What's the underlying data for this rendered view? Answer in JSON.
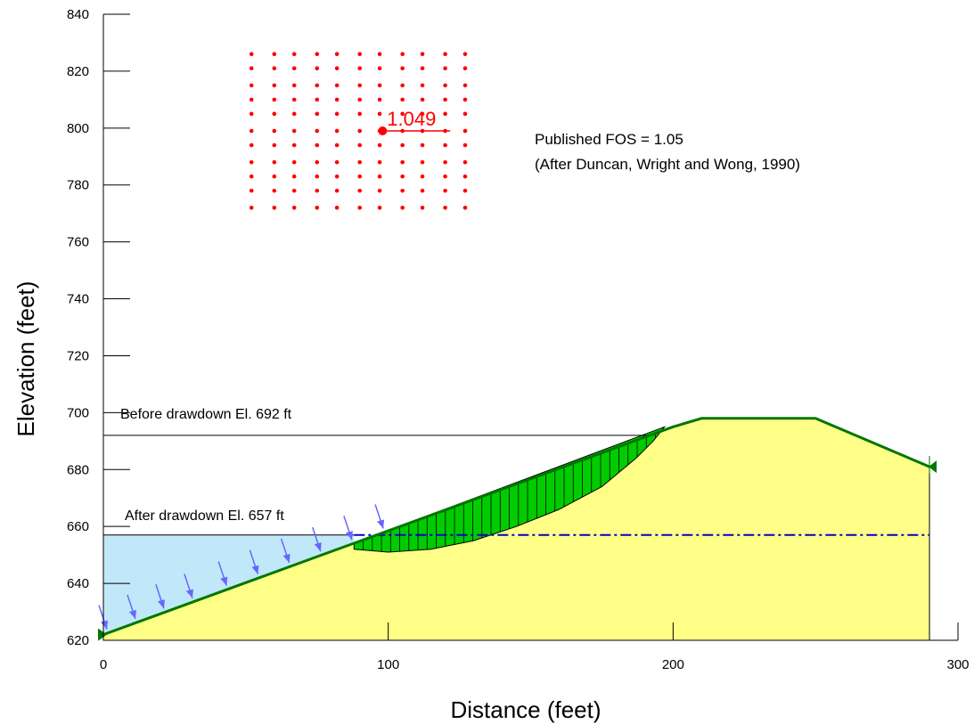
{
  "chart_data": {
    "type": "slope-stability-cross-section",
    "xlabel": "Distance (feet)",
    "ylabel": "Elevation (feet)",
    "xlim": [
      0,
      300
    ],
    "ylim": [
      620,
      840
    ],
    "x_ticks": [
      0,
      100,
      200,
      300
    ],
    "y_ticks": [
      620,
      640,
      660,
      680,
      700,
      720,
      740,
      760,
      780,
      800,
      820,
      840
    ],
    "ground_surface": [
      [
        0,
        622
      ],
      [
        200,
        695
      ],
      [
        210,
        698
      ],
      [
        250,
        698
      ],
      [
        290,
        681
      ]
    ],
    "water_levels": [
      {
        "label": "Before drawdown El. 692 ft",
        "elevation": 692,
        "x_end": 192
      },
      {
        "label": "After drawdown El. 657 ft",
        "elevation": 657,
        "x_end": 88
      }
    ],
    "phreatic_line": {
      "elevation": 657,
      "x_start": 88,
      "x_end": 290,
      "color": "#0000cc"
    },
    "slip_surface": {
      "bottom": [
        [
          88,
          652
        ],
        [
          100,
          651
        ],
        [
          115,
          652
        ],
        [
          130,
          655
        ],
        [
          145,
          660
        ],
        [
          160,
          666
        ],
        [
          175,
          674
        ],
        [
          187,
          684
        ],
        [
          193,
          690
        ],
        [
          197,
          695
        ]
      ],
      "fill_color": "#00cc00"
    },
    "grid_centers": {
      "x": [
        52,
        60,
        67,
        75,
        82,
        90,
        97,
        105,
        112,
        120,
        127
      ],
      "y": [
        826,
        821,
        815,
        810,
        805,
        799,
        794,
        788,
        783,
        778,
        772
      ],
      "color": "#ff0000"
    },
    "critical_center": {
      "x": 98,
      "y": 799,
      "fos_label": "1.049"
    },
    "applied_loads_x": [
      0,
      10,
      20,
      30,
      42,
      53,
      64,
      75,
      86,
      97
    ],
    "annotations": [
      "Published FOS = 1.05",
      "(After Duncan, Wright and Wong, 1990)"
    ],
    "colors": {
      "soil": "#ffff88",
      "water": "#c0e8f8",
      "ground": "#007700",
      "load_arrow": "#6666ff",
      "grid": "#ff0000"
    }
  }
}
